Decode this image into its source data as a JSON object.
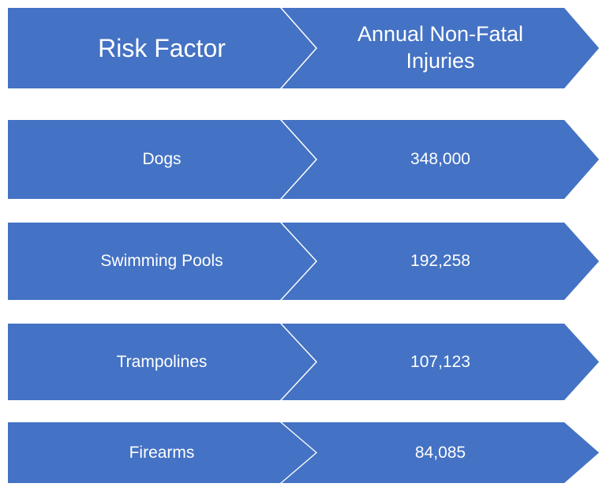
{
  "header": {
    "risk_factor": "Risk Factor",
    "injuries": "Annual Non-Fatal Injuries"
  },
  "rows": [
    [
      "Dogs",
      "348,000"
    ],
    [
      "Swimming Pools",
      "192,258"
    ],
    [
      "Trampolines",
      "107,123"
    ],
    [
      "Firearms",
      "84,085"
    ]
  ]
}
